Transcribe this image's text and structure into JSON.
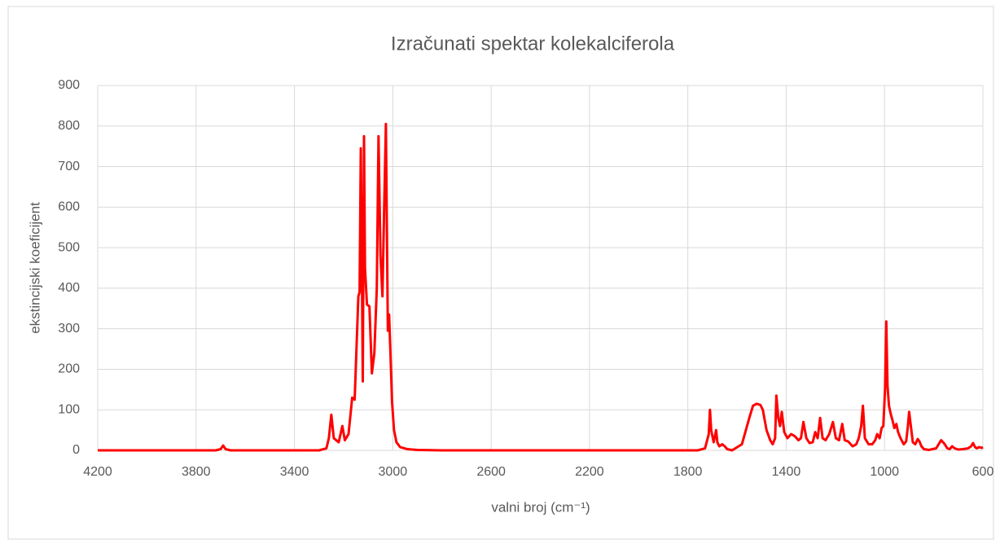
{
  "chart_data": {
    "type": "line",
    "title": "Izračunati spektar kolekalciferola",
    "xlabel": "valni broj (cm⁻¹)",
    "ylabel": "ekstincijski koeficijent",
    "color": "#ff0000",
    "grid": true,
    "xlim": [
      4200,
      600
    ],
    "xticks": [
      4200,
      3800,
      3400,
      3000,
      2600,
      2200,
      1800,
      1400,
      1000,
      600
    ],
    "ylim": [
      0,
      900
    ],
    "yticks": [
      0,
      100,
      200,
      300,
      400,
      500,
      600,
      700,
      800,
      900
    ],
    "x": [
      4200,
      3720,
      3700,
      3690,
      3680,
      3660,
      3300,
      3270,
      3260,
      3250,
      3240,
      3220,
      3205,
      3195,
      3180,
      3165,
      3155,
      3140,
      3135,
      3130,
      3125,
      3122,
      3117,
      3113,
      3105,
      3095,
      3085,
      3075,
      3065,
      3058,
      3050,
      3042,
      3035,
      3028,
      3020,
      3015,
      3010,
      3003,
      2995,
      2985,
      2970,
      2940,
      2900,
      2800,
      1760,
      1730,
      1715,
      1710,
      1705,
      1695,
      1685,
      1680,
      1672,
      1660,
      1650,
      1640,
      1620,
      1580,
      1550,
      1535,
      1520,
      1505,
      1495,
      1480,
      1465,
      1455,
      1445,
      1440,
      1432,
      1425,
      1418,
      1408,
      1395,
      1380,
      1365,
      1350,
      1340,
      1330,
      1318,
      1305,
      1292,
      1282,
      1272,
      1262,
      1252,
      1240,
      1225,
      1210,
      1198,
      1185,
      1172,
      1162,
      1148,
      1130,
      1115,
      1105,
      1095,
      1088,
      1080,
      1065,
      1050,
      1038,
      1030,
      1020,
      1012,
      1005,
      998,
      993,
      988,
      982,
      975,
      968,
      960,
      952,
      945,
      935,
      922,
      912,
      905,
      900,
      893,
      885,
      875,
      865,
      858,
      850,
      840,
      820,
      790,
      770,
      762,
      755,
      745,
      735,
      725,
      715,
      700,
      680,
      660,
      648,
      640,
      632,
      625,
      615,
      605,
      600
    ],
    "values": [
      0,
      0,
      3,
      12,
      3,
      0,
      0,
      5,
      30,
      88,
      30,
      20,
      60,
      25,
      40,
      130,
      125,
      380,
      390,
      745,
      400,
      170,
      775,
      450,
      360,
      355,
      190,
      240,
      400,
      775,
      480,
      380,
      600,
      805,
      295,
      335,
      250,
      120,
      50,
      20,
      8,
      3,
      1,
      0,
      0,
      5,
      40,
      100,
      50,
      20,
      50,
      20,
      10,
      15,
      10,
      3,
      0,
      15,
      80,
      110,
      115,
      112,
      100,
      50,
      25,
      15,
      30,
      135,
      80,
      60,
      95,
      45,
      30,
      40,
      35,
      25,
      30,
      70,
      30,
      18,
      20,
      45,
      30,
      80,
      30,
      25,
      40,
      70,
      30,
      25,
      65,
      25,
      22,
      10,
      15,
      30,
      60,
      110,
      30,
      15,
      15,
      25,
      40,
      30,
      55,
      60,
      150,
      318,
      160,
      110,
      90,
      75,
      55,
      65,
      45,
      30,
      15,
      22,
      60,
      95,
      60,
      20,
      15,
      28,
      22,
      10,
      3,
      1,
      5,
      25,
      20,
      15,
      5,
      3,
      10,
      5,
      2,
      3,
      5,
      10,
      18,
      8,
      5,
      8,
      6,
      8
    ]
  }
}
